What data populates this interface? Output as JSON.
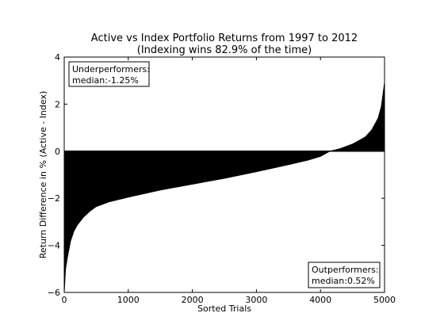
{
  "chart_data": {
    "type": "area",
    "title": "Active vs Index Portfolio Returns from 1997 to 2012",
    "subtitle": "(Indexing wins 82.9% of the time)",
    "xlabel": "Sorted Trials",
    "ylabel": "Return Difference in % (Active - Index)",
    "xlim": [
      0,
      5000
    ],
    "ylim": [
      -6,
      4
    ],
    "xticks": [
      0,
      1000,
      2000,
      3000,
      4000,
      5000
    ],
    "yticks": [
      -6,
      -4,
      -2,
      0,
      2,
      4
    ],
    "grid": false,
    "fill_color": "#000000",
    "x": [
      0,
      20,
      50,
      100,
      150,
      200,
      300,
      400,
      500,
      700,
      1000,
      1500,
      2000,
      2500,
      3000,
      3500,
      3800,
      4000,
      4144,
      4300,
      4500,
      4700,
      4800,
      4900,
      4950,
      4980,
      5000
    ],
    "y": [
      -6.0,
      -5.0,
      -4.5,
      -3.8,
      -3.4,
      -3.15,
      -2.8,
      -2.55,
      -2.35,
      -2.15,
      -1.95,
      -1.65,
      -1.4,
      -1.15,
      -0.87,
      -0.57,
      -0.38,
      -0.22,
      0.0,
      0.1,
      0.3,
      0.6,
      0.9,
      1.4,
      1.9,
      2.5,
      2.9
    ],
    "annotations": {
      "underperformers": {
        "line1": "Underperformers:",
        "line2": "median:-1.25%"
      },
      "outperformers": {
        "line1": "Outperformers:",
        "line2": "median:0.52%"
      }
    }
  }
}
